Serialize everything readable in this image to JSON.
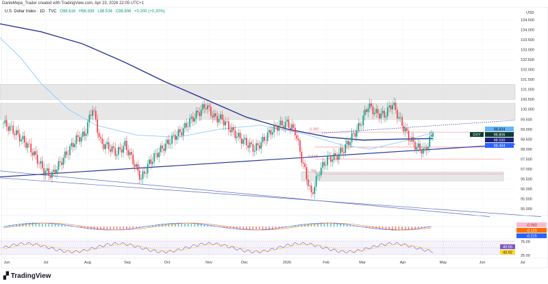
{
  "credit": "DanieMejia_Trader created with TradingView.com, Apr 23, 2026 22:05 UTC+1",
  "legend": {
    "symbol": "U.S. Dollar Index · 1D · TVC",
    "open": "O98.616",
    "high": "H98.939",
    "low": "L98.534",
    "close": "C98.806",
    "change": "+0.200 (+0.20%)"
  },
  "currency": "USD",
  "brand": "TradingView",
  "colors": {
    "up": "#089981",
    "down": "#f23645",
    "ma200": "#283593",
    "ma50": "#90caf9",
    "zone": "#e0e0e0",
    "level": "#f7a1a8",
    "rsi": "#7e57c2"
  },
  "price_tags": [
    {
      "label": "",
      "value": "98.834",
      "bg": "#64b5f6",
      "fg": "#131722"
    },
    {
      "label": "DXY",
      "value": "98.806",
      "bg": "#0b3d2e",
      "fg": "#ffffff"
    },
    {
      "label": "",
      "value": "98.530",
      "bg": "#1a237e",
      "fg": "#ffffff"
    },
    {
      "label": "",
      "value": "98.494",
      "bg": "#2962ff",
      "fg": "#ffffff"
    }
  ],
  "fib_labels": [
    "0.382",
    "0.618",
    "0.786"
  ],
  "macd_tags": [
    {
      "value": "-0.060",
      "bg": "#f8bbd0",
      "fg": "#b71c1c"
    },
    {
      "value": "-0.155",
      "bg": "#ff6d00",
      "fg": "#ffffff"
    },
    {
      "value": "-0.215",
      "bg": "#2962ff",
      "fg": "#ffffff"
    }
  ],
  "rsi_axis": [
    "75.00",
    "25.00"
  ],
  "rsi_tags": [
    {
      "value": "49.56",
      "bg": "#7e57c2",
      "fg": "#ffffff"
    },
    {
      "value": "43.92",
      "bg": "#fdd835",
      "fg": "#131722"
    }
  ],
  "chart_data": {
    "type": "candlestick",
    "timeframe": "1D",
    "y_ticks": [
      "104.500",
      "104.000",
      "103.500",
      "103.000",
      "102.500",
      "102.000",
      "101.500",
      "101.000",
      "100.500",
      "100.000",
      "99.500",
      "99.000",
      "98.500",
      "98.000",
      "97.500",
      "97.000",
      "96.500",
      "96.000",
      "95.500",
      "95.000"
    ],
    "ylim": [
      94.6,
      104.9
    ],
    "x_ticks": [
      "Jun",
      "Jul",
      "Aug",
      "Sep",
      "Oct",
      "Nov",
      "Dec",
      "2026",
      "Feb",
      "Mar",
      "Apr",
      "May",
      "Jun",
      "Jul"
    ],
    "weekly_closes": [
      99.3,
      99.0,
      98.6,
      98.2,
      97.6,
      96.9,
      96.7,
      97.3,
      97.9,
      98.5,
      98.7,
      100.1,
      98.3,
      98.1,
      97.8,
      98.2,
      97.4,
      96.5,
      97.3,
      97.8,
      98.2,
      98.6,
      98.9,
      99.4,
      99.8,
      100.2,
      99.6,
      99.5,
      99.0,
      98.6,
      98.3,
      98.0,
      98.4,
      98.9,
      99.2,
      99.3,
      98.9,
      97.2,
      95.7,
      96.9,
      97.5,
      97.6,
      98.0,
      98.6,
      99.2,
      100.2,
      99.8,
      99.7,
      100.3,
      99.4,
      98.6,
      98.1,
      97.9,
      98.81
    ],
    "ma200": [
      [
        0,
        104.3
      ],
      [
        60,
        103.9
      ],
      [
        120,
        103.3
      ],
      [
        180,
        102.4
      ],
      [
        240,
        101.4
      ],
      [
        300,
        100.5
      ],
      [
        360,
        99.6
      ],
      [
        420,
        99.0
      ],
      [
        480,
        98.6
      ],
      [
        530,
        98.45
      ],
      [
        580,
        98.5
      ],
      [
        632,
        98.53
      ]
    ],
    "ma50": [
      [
        0,
        103.6
      ],
      [
        30,
        102.6
      ],
      [
        60,
        101.3
      ],
      [
        100,
        100.0
      ],
      [
        140,
        99.2
      ],
      [
        200,
        98.7
      ],
      [
        260,
        98.6
      ],
      [
        320,
        99.0
      ],
      [
        380,
        99.2
      ],
      [
        440,
        98.8
      ],
      [
        500,
        98.2
      ],
      [
        540,
        98.0
      ],
      [
        590,
        98.4
      ],
      [
        632,
        98.83
      ]
    ],
    "trendline_up": [
      [
        0,
        96.6
      ],
      [
        752,
        98.25
      ]
    ],
    "channel_lines": [
      [
        [
          0,
          96.9
        ],
        [
          715,
          94.6
        ]
      ],
      [
        [
          0,
          96.55
        ],
        [
          790,
          94.6
        ]
      ]
    ],
    "dotted_trend": [
      [
        470,
        98.8
      ],
      [
        752,
        99.45
      ]
    ],
    "zones": [
      {
        "from": 100.5,
        "to": 101.25,
        "x0": 0
      },
      {
        "from": 99.5,
        "to": 100.3,
        "x0": 0
      },
      {
        "from": 96.4,
        "to": 96.85,
        "x0": 440
      }
    ],
    "levels": [
      98.85,
      98.1,
      97.5,
      96.75
    ]
  }
}
